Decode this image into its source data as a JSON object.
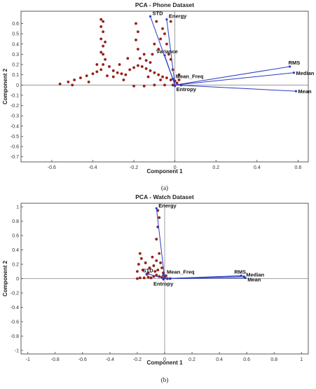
{
  "chart_data": [
    {
      "type": "scatter",
      "title": "PCA - Phone Dataset",
      "xlabel": "Component 1",
      "ylabel": "Component 2",
      "xlim": [
        -0.75,
        0.65
      ],
      "ylim": [
        -0.75,
        0.72
      ],
      "xticks": [
        -0.6,
        -0.4,
        -0.2,
        0,
        0.2,
        0.4,
        0.6
      ],
      "yticks": [
        0.6,
        0.5,
        0.4,
        0.3,
        0.2,
        0.1,
        0,
        -0.1,
        -0.2,
        -0.3,
        -0.4,
        -0.5,
        -0.6,
        -0.7
      ],
      "subfigure_label": "(a)",
      "grid": false,
      "vectors": [
        {
          "label": "STD",
          "x": -0.12,
          "y": 0.67
        },
        {
          "label": "Energy",
          "x": -0.04,
          "y": 0.64
        },
        {
          "label": "Variance",
          "x": -0.05,
          "y": 0.29
        },
        {
          "label": "Mean_Freq",
          "x": -0.01,
          "y": 0.06
        },
        {
          "label": "Entropy",
          "x": 0.0,
          "y": -0.01
        },
        {
          "label": "RMS",
          "x": 0.56,
          "y": 0.18
        },
        {
          "label": "Median",
          "x": 0.58,
          "y": 0.12
        },
        {
          "label": "Mean",
          "x": 0.59,
          "y": -0.06
        }
      ],
      "scores": [
        [
          -0.56,
          0.01
        ],
        [
          -0.52,
          0.03
        ],
        [
          -0.49,
          0.05
        ],
        [
          -0.46,
          0.07
        ],
        [
          -0.43,
          0.09
        ],
        [
          -0.4,
          0.11
        ],
        [
          -0.38,
          0.13
        ],
        [
          -0.36,
          0.15
        ],
        [
          -0.35,
          0.2
        ],
        [
          -0.34,
          0.25
        ],
        [
          -0.36,
          0.32
        ],
        [
          -0.35,
          0.38
        ],
        [
          -0.36,
          0.45
        ],
        [
          -0.35,
          0.52
        ],
        [
          -0.36,
          0.57
        ],
        [
          -0.35,
          0.62
        ],
        [
          -0.36,
          0.64
        ],
        [
          -0.34,
          0.42
        ],
        [
          -0.35,
          0.3
        ],
        [
          -0.32,
          0.18
        ],
        [
          -0.3,
          0.14
        ],
        [
          -0.28,
          0.12
        ],
        [
          -0.26,
          0.11
        ],
        [
          -0.24,
          0.1
        ],
        [
          -0.22,
          0.15
        ],
        [
          -0.2,
          0.17
        ],
        [
          -0.18,
          0.19
        ],
        [
          -0.16,
          0.18
        ],
        [
          -0.14,
          0.16
        ],
        [
          -0.12,
          0.14
        ],
        [
          -0.1,
          0.12
        ],
        [
          -0.08,
          0.1
        ],
        [
          -0.06,
          0.08
        ],
        [
          -0.04,
          0.07
        ],
        [
          -0.02,
          0.05
        ],
        [
          0.0,
          0.04
        ],
        [
          -0.19,
          0.6
        ],
        [
          -0.18,
          0.52
        ],
        [
          -0.19,
          0.44
        ],
        [
          -0.18,
          0.35
        ],
        [
          -0.17,
          0.26
        ],
        [
          -0.15,
          0.3
        ],
        [
          -0.14,
          0.24
        ],
        [
          -0.12,
          0.22
        ],
        [
          -0.11,
          0.3
        ],
        [
          -0.1,
          0.4
        ],
        [
          -0.08,
          0.35
        ],
        [
          -0.07,
          0.45
        ],
        [
          -0.06,
          0.55
        ],
        [
          -0.05,
          0.5
        ],
        [
          -0.04,
          0.4
        ],
        [
          -0.03,
          0.3
        ],
        [
          -0.02,
          0.25
        ],
        [
          -0.01,
          0.15
        ],
        [
          0.02,
          0.1
        ],
        [
          0.01,
          0.02
        ],
        [
          0.03,
          0.0
        ],
        [
          -0.01,
          0.0
        ],
        [
          -0.05,
          0.0
        ],
        [
          -0.1,
          0.0
        ],
        [
          -0.15,
          -0.01
        ],
        [
          -0.2,
          -0.01
        ],
        [
          -0.25,
          0.05
        ],
        [
          -0.3,
          0.08
        ],
        [
          -0.5,
          0.0
        ],
        [
          -0.42,
          0.03
        ],
        [
          -0.38,
          0.2
        ],
        [
          -0.33,
          0.09
        ],
        [
          -0.27,
          0.2
        ],
        [
          -0.23,
          0.26
        ],
        [
          -0.09,
          0.62
        ],
        [
          -0.02,
          0.62
        ],
        [
          -0.13,
          0.08
        ],
        [
          -0.07,
          0.05
        ],
        [
          0.02,
          0.05
        ]
      ]
    },
    {
      "type": "scatter",
      "title": "PCA - Watch Dataset",
      "xlabel": "Component 1",
      "ylabel": "Component 2",
      "xlim": [
        -1.05,
        1.05
      ],
      "ylim": [
        -1.05,
        1.05
      ],
      "xticks": [
        -1,
        -0.8,
        -0.6,
        -0.4,
        -0.2,
        0,
        0.2,
        0.4,
        0.6,
        0.8,
        1
      ],
      "yticks": [
        1,
        0.8,
        0.6,
        0.4,
        0.2,
        0,
        -0.2,
        -0.4,
        -0.6,
        -0.8,
        -1
      ],
      "subfigure_label": "(b)",
      "grid": false,
      "vectors": [
        {
          "label": "Energy",
          "x": -0.06,
          "y": 0.98
        },
        {
          "label": "STD",
          "x": -0.13,
          "y": 0.07
        },
        {
          "label": "Mean_Freq",
          "x": -0.01,
          "y": 0.05
        },
        {
          "label": "RMS",
          "x": 0.56,
          "y": 0.04
        },
        {
          "label": "Median",
          "x": 0.58,
          "y": 0.03
        },
        {
          "label": "Mean",
          "x": 0.59,
          "y": 0.01
        },
        {
          "label": "Entropy",
          "x": -0.01,
          "y": -0.01
        }
      ],
      "scores": [
        [
          -0.2,
          0.0
        ],
        [
          -0.18,
          0.01
        ],
        [
          -0.15,
          0.01
        ],
        [
          -0.12,
          0.02
        ],
        [
          -0.1,
          0.01
        ],
        [
          -0.08,
          0.03
        ],
        [
          -0.06,
          0.05
        ],
        [
          -0.04,
          0.03
        ],
        [
          -0.02,
          0.02
        ],
        [
          0.0,
          0.01
        ],
        [
          0.02,
          0.0
        ],
        [
          0.04,
          0.0
        ],
        [
          -0.19,
          0.2
        ],
        [
          -0.18,
          0.35
        ],
        [
          -0.17,
          0.28
        ],
        [
          -0.16,
          0.12
        ],
        [
          -0.14,
          0.22
        ],
        [
          -0.12,
          0.08
        ],
        [
          -0.11,
          0.15
        ],
        [
          -0.09,
          0.3
        ],
        [
          -0.08,
          0.18
        ],
        [
          -0.07,
          0.1
        ],
        [
          -0.06,
          0.25
        ],
        [
          -0.05,
          0.12
        ],
        [
          -0.04,
          0.35
        ],
        [
          -0.03,
          0.22
        ],
        [
          -0.02,
          0.15
        ],
        [
          -0.01,
          0.08
        ],
        [
          -0.06,
          0.55
        ],
        [
          -0.05,
          0.72
        ],
        [
          -0.04,
          0.85
        ],
        [
          -0.05,
          0.95
        ],
        [
          0.01,
          0.04
        ],
        [
          -0.2,
          0.1
        ],
        [
          -0.13,
          0.06
        ]
      ]
    }
  ]
}
